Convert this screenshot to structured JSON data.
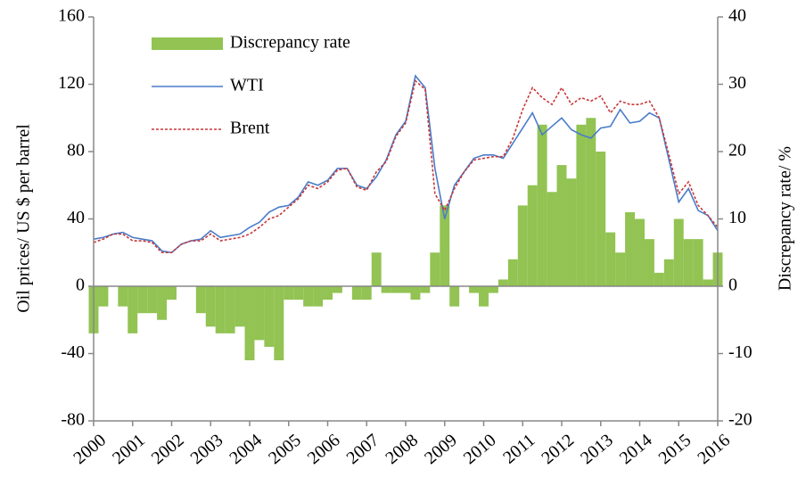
{
  "chart_data": {
    "type": "line",
    "x": [
      2000,
      2000.25,
      2000.5,
      2000.75,
      2001,
      2001.25,
      2001.5,
      2001.75,
      2002,
      2002.25,
      2002.5,
      2002.75,
      2003,
      2003.25,
      2003.5,
      2003.75,
      2004,
      2004.25,
      2004.5,
      2004.75,
      2005,
      2005.25,
      2005.5,
      2005.75,
      2006,
      2006.25,
      2006.5,
      2006.75,
      2007,
      2007.25,
      2007.5,
      2007.75,
      2008,
      2008.25,
      2008.5,
      2008.75,
      2009,
      2009.25,
      2009.5,
      2009.75,
      2010,
      2010.25,
      2010.5,
      2010.75,
      2011,
      2011.25,
      2011.5,
      2011.75,
      2012,
      2012.25,
      2012.5,
      2012.75,
      2013,
      2013.25,
      2013.5,
      2013.75,
      2014,
      2014.25,
      2014.5,
      2014.75,
      2015,
      2015.25,
      2015.5,
      2015.75,
      2016
    ],
    "series": [
      {
        "name": "Discrepancy rate",
        "type": "bar",
        "axis": "y2",
        "color": "#92c353",
        "values": [
          -7,
          -3,
          0,
          -3,
          -7,
          -4,
          -4,
          -5,
          -2,
          0,
          0,
          -4,
          -6,
          -7,
          -7,
          -6,
          -11,
          -8,
          -9,
          -11,
          -2,
          -2,
          -3,
          -3,
          -2,
          -1,
          0,
          -2,
          -2,
          5,
          -1,
          -1,
          -1,
          -2,
          -1,
          5,
          12,
          -3,
          0,
          -1,
          -3,
          -1,
          1,
          4,
          12,
          15,
          24,
          14,
          18,
          16,
          24,
          25,
          20,
          8,
          5,
          11,
          10,
          7,
          2,
          4,
          10,
          7,
          7,
          1,
          5
        ]
      },
      {
        "name": "WTI",
        "type": "line",
        "color": "#4a7cc9",
        "values": [
          28,
          29,
          31,
          32,
          29,
          28,
          27,
          21,
          20,
          25,
          27,
          28,
          33,
          29,
          30,
          31,
          35,
          38,
          44,
          47,
          48,
          53,
          62,
          60,
          63,
          70,
          70,
          60,
          58,
          65,
          75,
          90,
          98,
          125,
          118,
          70,
          40,
          60,
          68,
          76,
          78,
          78,
          76,
          85,
          94,
          103,
          90,
          95,
          100,
          93,
          90,
          88,
          94,
          95,
          105,
          97,
          98,
          103,
          100,
          75,
          50,
          58,
          45,
          42,
          33
        ]
      },
      {
        "name": "Brent",
        "type": "line",
        "dashed": true,
        "color": "#c8373a",
        "values": [
          26,
          28,
          31,
          31,
          27,
          27,
          26,
          20,
          20,
          25,
          27,
          27,
          31,
          27,
          28,
          29,
          31,
          35,
          40,
          42,
          47,
          52,
          60,
          58,
          62,
          69,
          70,
          59,
          57,
          68,
          74,
          89,
          97,
          122,
          117,
          55,
          45,
          58,
          68,
          75,
          76,
          77,
          77,
          88,
          105,
          118,
          112,
          108,
          118,
          108,
          112,
          110,
          113,
          103,
          110,
          108,
          108,
          110,
          100,
          78,
          55,
          62,
          48,
          42,
          35
        ]
      }
    ],
    "xlim": [
      2000,
      2016
    ],
    "xticks": [
      2000,
      2001,
      2002,
      2003,
      2004,
      2005,
      2006,
      2007,
      2008,
      2009,
      2010,
      2011,
      2012,
      2013,
      2014,
      2015,
      2016
    ],
    "ylim": [
      -80,
      160
    ],
    "yticks": [
      -80,
      -40,
      0,
      40,
      80,
      120,
      160
    ],
    "y2lim": [
      -20,
      40
    ],
    "y2ticks": [
      -20,
      -10,
      0,
      10,
      20,
      30,
      40
    ],
    "ylabel": "Oil prices/ US $ per barrel",
    "y2label": "Discrepancy rate/ %",
    "legend": "upper left"
  }
}
